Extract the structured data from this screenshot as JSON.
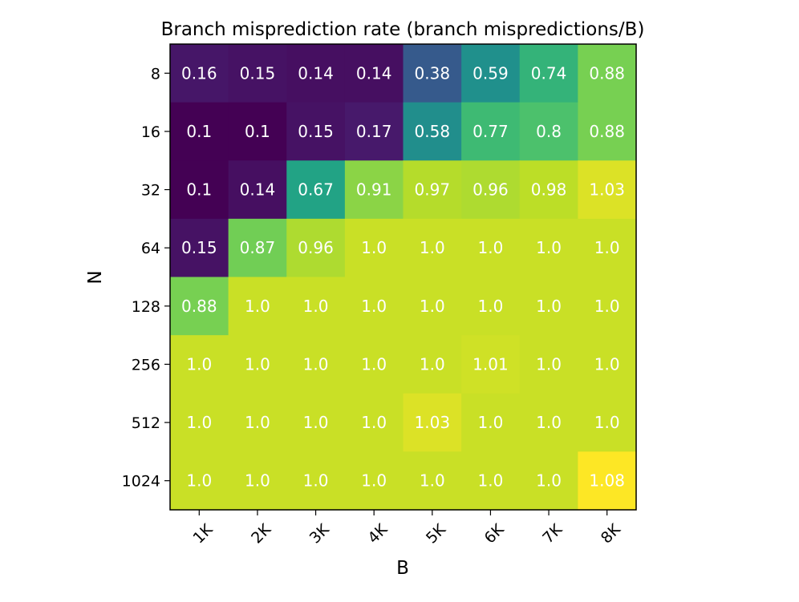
{
  "chart_data": {
    "type": "heatmap",
    "title": "Branch misprediction rate (branch mispredictions/B)",
    "xlabel": "B",
    "ylabel": "N",
    "x_categories": [
      "1K",
      "2K",
      "3K",
      "4K",
      "5K",
      "6K",
      "7K",
      "8K"
    ],
    "y_categories": [
      "8",
      "16",
      "32",
      "64",
      "128",
      "256",
      "512",
      "1024"
    ],
    "labels": [
      [
        "0.16",
        "0.15",
        "0.14",
        "0.14",
        "0.38",
        "0.59",
        "0.74",
        "0.88"
      ],
      [
        "0.1",
        "0.1",
        "0.15",
        "0.17",
        "0.58",
        "0.77",
        "0.8",
        "0.88"
      ],
      [
        "0.1",
        "0.14",
        "0.67",
        "0.91",
        "0.97",
        "0.96",
        "0.98",
        "1.03"
      ],
      [
        "0.15",
        "0.87",
        "0.96",
        "1.0",
        "1.0",
        "1.0",
        "1.0",
        "1.0"
      ],
      [
        "0.88",
        "1.0",
        "1.0",
        "1.0",
        "1.0",
        "1.0",
        "1.0",
        "1.0"
      ],
      [
        "1.0",
        "1.0",
        "1.0",
        "1.0",
        "1.0",
        "1.01",
        "1.0",
        "1.0"
      ],
      [
        "1.0",
        "1.0",
        "1.0",
        "1.0",
        "1.03",
        "1.0",
        "1.0",
        "1.0"
      ],
      [
        "1.0",
        "1.0",
        "1.0",
        "1.0",
        "1.0",
        "1.0",
        "1.0",
        "1.08"
      ]
    ],
    "colormap": "viridis",
    "grid": false,
    "x_tick_rotation_deg": 45
  }
}
